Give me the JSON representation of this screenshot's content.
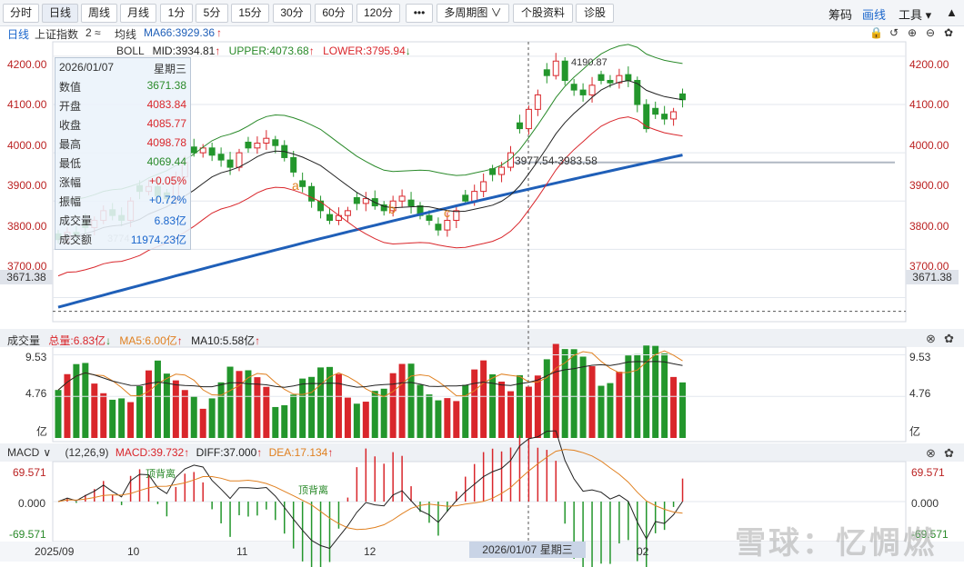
{
  "toolbar": {
    "buttons": [
      "分时",
      "日线",
      "周线",
      "月线",
      "1分",
      "5分",
      "15分",
      "30分",
      "60分",
      "120分",
      "•••",
      "多周期图 ∨",
      "个股资料",
      "诊股"
    ],
    "right": [
      "筹码",
      "画线",
      "工具 ▾"
    ]
  },
  "header": {
    "period": "日线",
    "index_name": "上证指数",
    "count": "2 ≈",
    "ma_label": "均线",
    "ma66": "MA66:3929.36"
  },
  "boll": {
    "label": "BOLL",
    "mid": "MID:3934.81",
    "upper": "UPPER:4073.68",
    "lower": "LOWER:3795.94"
  },
  "info": {
    "date": "2026/01/07",
    "weekday": "星期三",
    "rows": [
      {
        "k": "数值",
        "v": "3671.38"
      },
      {
        "k": "开盘",
        "v": "4083.84"
      },
      {
        "k": "收盘",
        "v": "4085.77"
      },
      {
        "k": "最高",
        "v": "4098.78"
      },
      {
        "k": "最低",
        "v": "4069.44"
      },
      {
        "k": "涨幅",
        "v": "+0.05%"
      },
      {
        "k": "振幅",
        "v": "+0.72%"
      },
      {
        "k": "成交量",
        "v": "6.83亿"
      },
      {
        "k": "成交额",
        "v": "11974.23亿"
      }
    ]
  },
  "price_axis": [
    "4200.00",
    "4100.00",
    "4000.00",
    "3900.00",
    "3800.00",
    "3700.00"
  ],
  "crosshair_value": "3671.38",
  "annotations": {
    "high": "4190.87",
    "range": "3977.54-3983.58",
    "low_hint": "3774",
    "a": "a",
    "b": "b",
    "c": "c"
  },
  "volume": {
    "label": "成交量",
    "total": "总量:6.83亿",
    "ma5": "MA5:6.00亿",
    "ma10": "MA10:5.58亿",
    "axis": [
      "9.53",
      "4.76",
      "亿"
    ]
  },
  "macd": {
    "label": "MACD",
    "params": "(12,26,9)",
    "macd": "MACD:39.732",
    "diff": "DIFF:37.000",
    "dea": "DEA:17.134",
    "axis": [
      "69.571",
      "0.000",
      "-69.571"
    ],
    "div1": "顶背离",
    "div2": "顶背离"
  },
  "x_axis": {
    "labels": [
      "2025/09",
      "10",
      "11",
      "12",
      "02"
    ],
    "cursor": "2026/01/07 星期三"
  },
  "watermark": "雪球：忆惆燃",
  "colors": {
    "up": "#d9262b",
    "down": "#23962c",
    "ma66": "#1f5fb8",
    "grid": "#e3e7ee"
  },
  "chart_data": {
    "type": "candlestick",
    "series_closes": [
      3820,
      3835,
      3830,
      3845,
      3860,
      3880,
      3870,
      3860,
      3900,
      3920,
      3930,
      3910,
      3905,
      3950,
      3980,
      4000,
      4010,
      3995,
      3985,
      3970,
      4000,
      4010,
      4020,
      4030,
      4015,
      3990,
      3960,
      3930,
      3900,
      3880,
      3860,
      3870,
      3880,
      3895,
      3905,
      3890,
      3880,
      3900,
      3910,
      3890,
      3870,
      3860,
      3840,
      3860,
      3880,
      3900,
      3920,
      3940,
      3955,
      3970,
      4000,
      4050,
      4090,
      4120,
      4160,
      4190,
      4150,
      4130,
      4120,
      4140,
      4150,
      4145,
      4160,
      4150,
      4100,
      4050,
      4080,
      4070,
      4085,
      4110
    ],
    "ylim": [
      3650,
      4230
    ]
  }
}
